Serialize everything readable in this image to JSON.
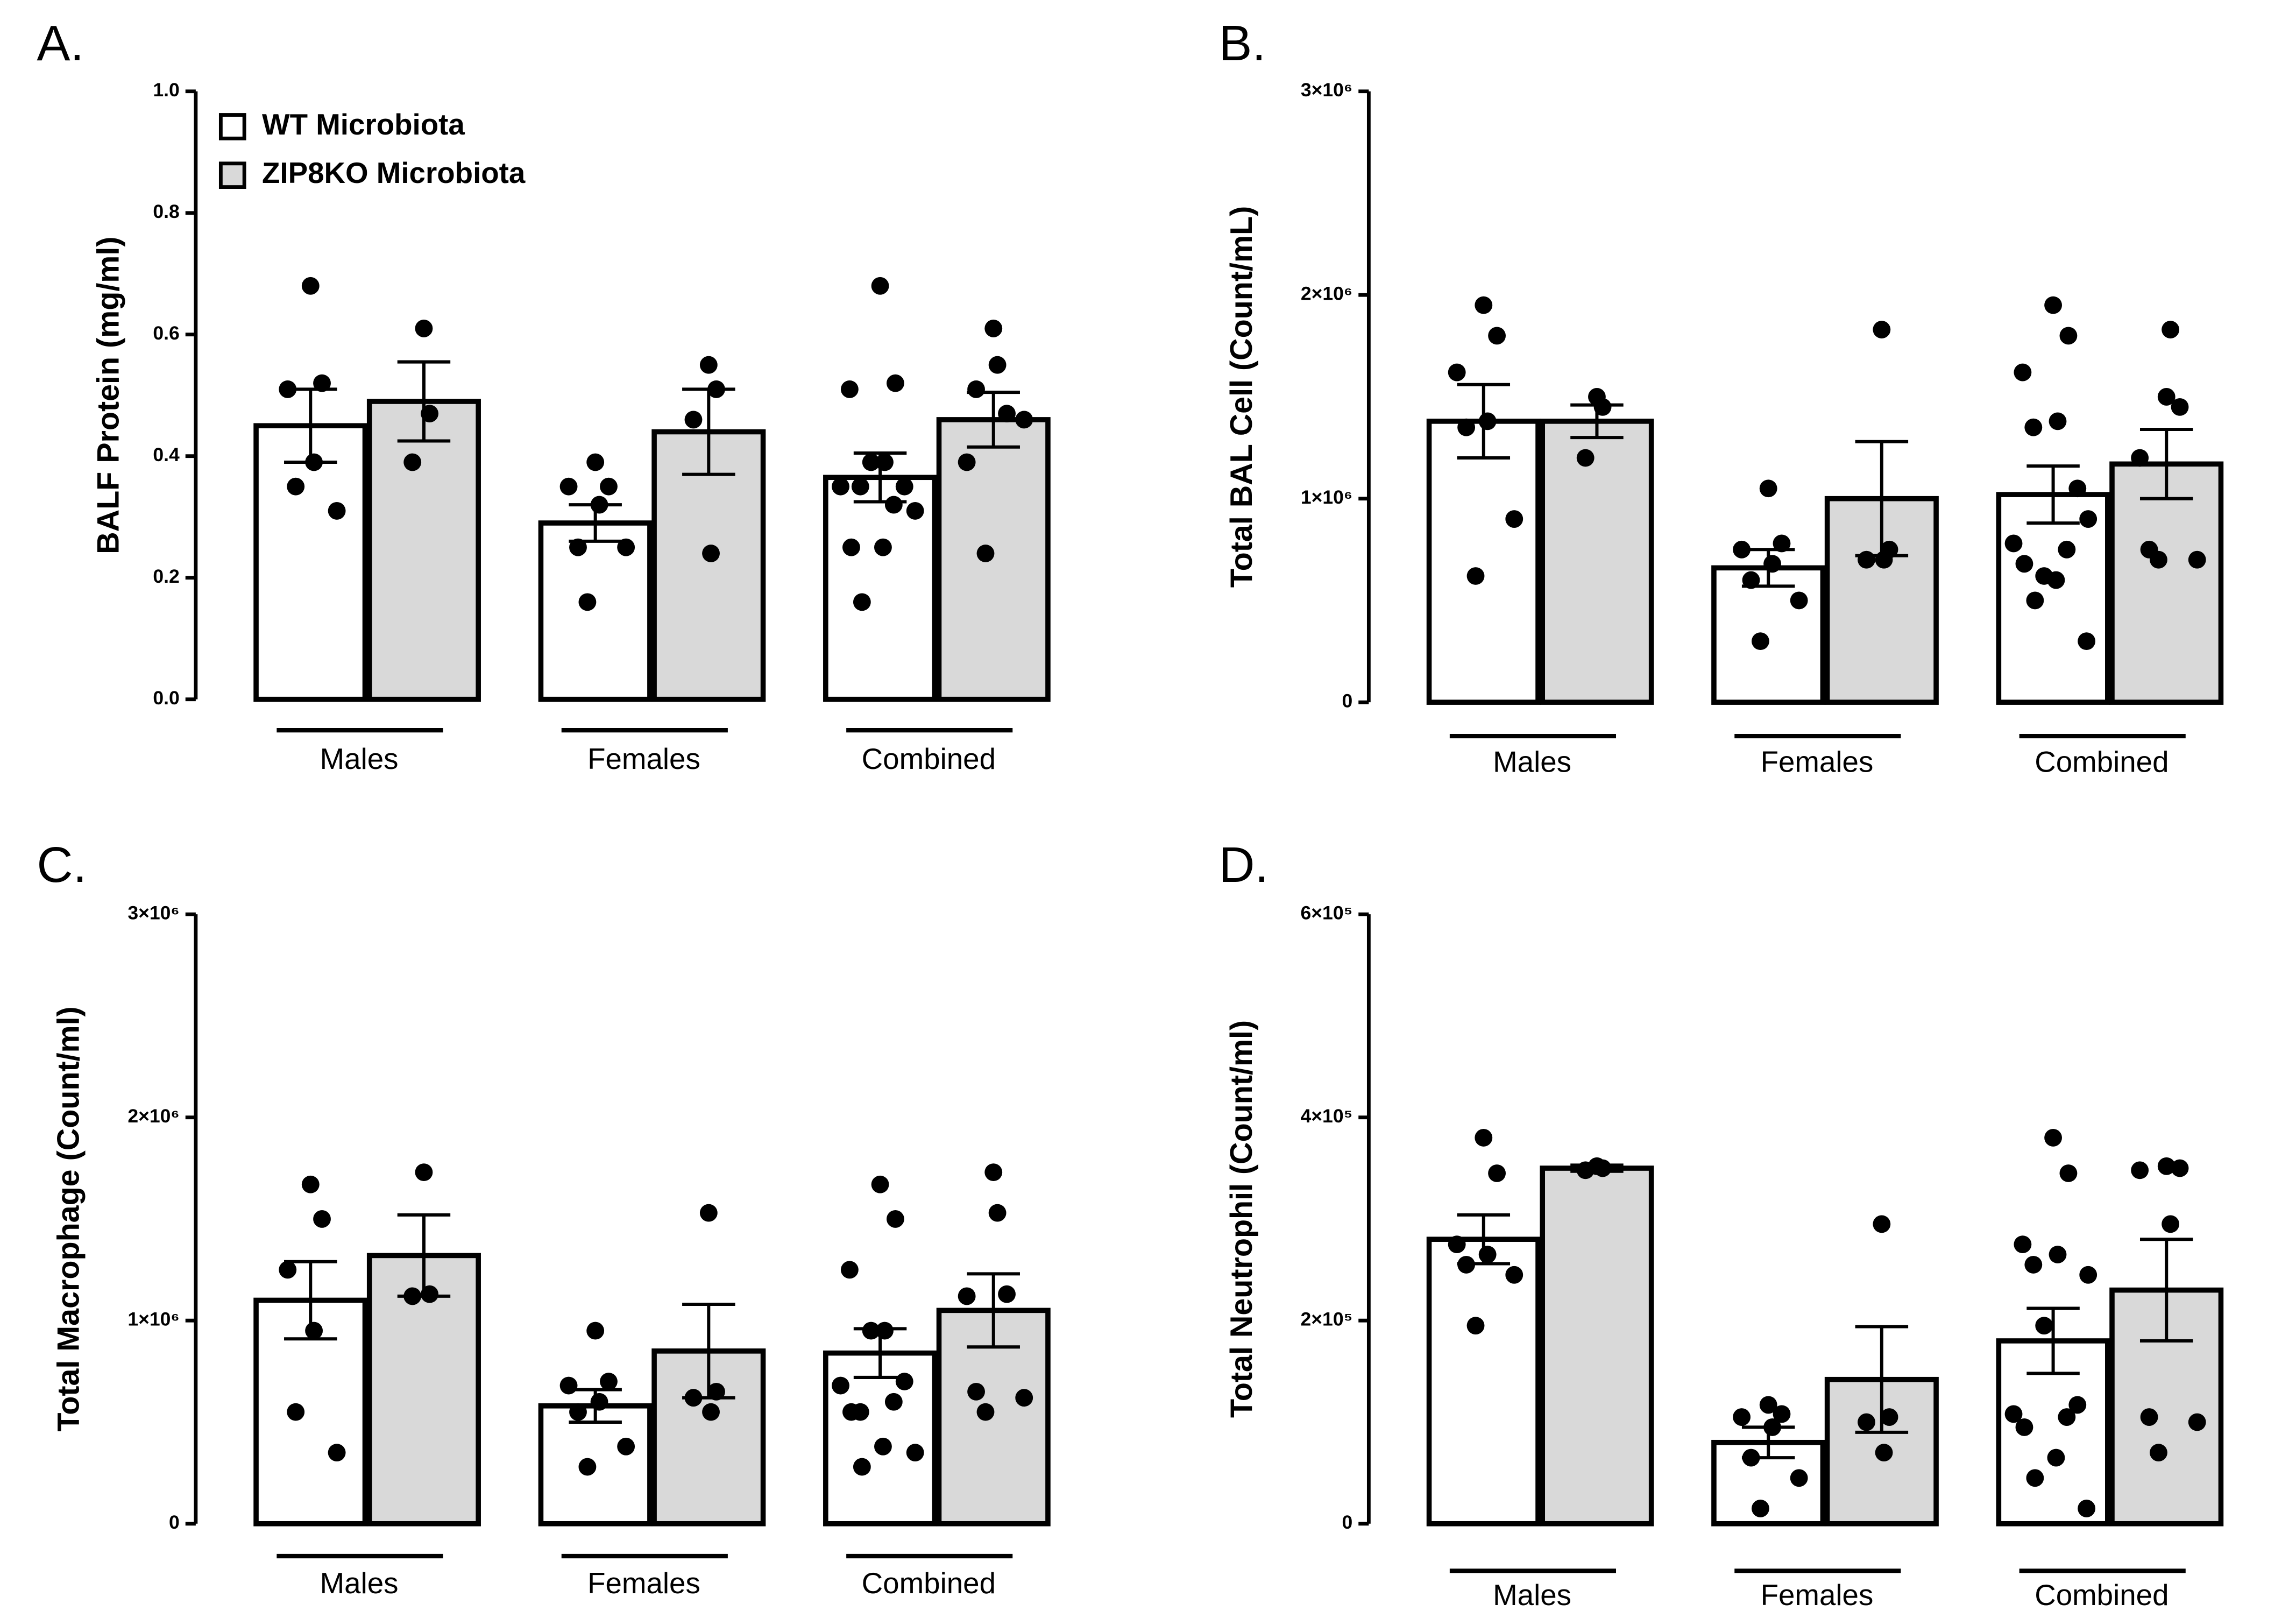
{
  "chart_data": [
    {
      "type": "bar",
      "panel": "A.",
      "ylabel": "BALF Protein  (mg/ml)",
      "legend": "upper left",
      "categories": [
        "Males",
        "Females",
        "Combined"
      ],
      "ylim": [
        0,
        1
      ],
      "yticks": [
        {
          "value": 0,
          "label": "0.0"
        },
        0.2,
        0.4,
        0.6,
        0.8,
        {
          "value": 1,
          "label": "1.0"
        }
      ],
      "series": [
        {
          "name": "WT Microbiota",
          "color": "#ffffff",
          "values": [
            0.45,
            0.29,
            0.365
          ],
          "errors": [
            0.06,
            0.03,
            0.04
          ],
          "points": [
            [
              0.68,
              0.52,
              0.51,
              0.39,
              0.35,
              0.31
            ],
            [
              0.39,
              0.35,
              0.35,
              0.32,
              0.25,
              0.25,
              0.16
            ],
            [
              0.68,
              0.52,
              0.51,
              0.39,
              0.35,
              0.31,
              0.39,
              0.35,
              0.35,
              0.32,
              0.25,
              0.25,
              0.16
            ]
          ]
        },
        {
          "name": "ZIP8KO Microbiota",
          "color": "#d9d9d9",
          "values": [
            0.49,
            0.44,
            0.46
          ],
          "errors": [
            0.065,
            0.07,
            0.045
          ],
          "points": [
            [
              0.61,
              0.47,
              0.39
            ],
            [
              0.55,
              0.51,
              0.46,
              0.24
            ],
            [
              0.61,
              0.47,
              0.39,
              0.55,
              0.51,
              0.46,
              0.24
            ]
          ]
        }
      ]
    },
    {
      "type": "bar",
      "panel": "B.",
      "ylabel": "Total BAL Cell (Count/mL)",
      "categories": [
        "Males",
        "Females",
        "Combined"
      ],
      "ylim": [
        0,
        3000000
      ],
      "yticks": [
        0,
        {
          "value": 1000000,
          "label": "1×10⁶"
        },
        {
          "value": 2000000,
          "label": "2×10⁶"
        },
        {
          "value": 3000000,
          "label": "3×10⁶"
        }
      ],
      "series": [
        {
          "color": "#ffffff",
          "values": [
            1380000,
            660000,
            1020000
          ],
          "errors": [
            180000,
            90000,
            140000
          ],
          "points": [
            [
              1950000,
              1800000,
              1620000,
              1380000,
              1350000,
              900000,
              620000
            ],
            [
              1050000,
              780000,
              750000,
              680000,
              600000,
              500000,
              300000
            ],
            [
              1950000,
              1800000,
              1620000,
              1380000,
              1350000,
              900000,
              620000,
              1050000,
              780000,
              750000,
              680000,
              600000,
              500000,
              300000
            ]
          ]
        },
        {
          "color": "#d9d9d9",
          "values": [
            1380000,
            1000000,
            1170000
          ],
          "errors": [
            80000,
            280000,
            170000
          ],
          "points": [
            [
              1500000,
              1450000,
              1200000
            ],
            [
              1830000,
              750000,
              700000,
              700000
            ],
            [
              1500000,
              1450000,
              1200000,
              1830000,
              750000,
              700000,
              700000
            ]
          ]
        }
      ]
    },
    {
      "type": "bar",
      "panel": "C.",
      "ylabel": "Total Macrophage (Count/ml)",
      "categories": [
        "Males",
        "Females",
        "Combined"
      ],
      "ylim": [
        0,
        3000000
      ],
      "yticks": [
        0,
        {
          "value": 1000000,
          "label": "1×10⁶"
        },
        {
          "value": 2000000,
          "label": "2×10⁶"
        },
        {
          "value": 3000000,
          "label": "3×10⁶"
        }
      ],
      "series": [
        {
          "color": "#ffffff",
          "values": [
            1100000,
            580000,
            840000
          ],
          "errors": [
            190000,
            80000,
            120000
          ],
          "points": [
            [
              1670000,
              1500000,
              1250000,
              950000,
              550000,
              350000
            ],
            [
              950000,
              700000,
              680000,
              600000,
              550000,
              380000,
              280000
            ],
            [
              1670000,
              1500000,
              1250000,
              950000,
              550000,
              350000,
              950000,
              700000,
              680000,
              600000,
              550000,
              380000,
              280000
            ]
          ]
        },
        {
          "color": "#d9d9d9",
          "values": [
            1320000,
            850000,
            1050000
          ],
          "errors": [
            200000,
            230000,
            180000
          ],
          "points": [
            [
              1730000,
              1130000,
              1120000
            ],
            [
              1530000,
              650000,
              620000,
              550000
            ],
            [
              1730000,
              1130000,
              1120000,
              1530000,
              650000,
              620000,
              550000
            ]
          ]
        }
      ]
    },
    {
      "type": "bar",
      "panel": "D.",
      "ylabel": "Total Neutrophil (Count/ml)",
      "categories": [
        "Males",
        "Females",
        "Combined"
      ],
      "ylim": [
        0,
        600000
      ],
      "yticks": [
        0,
        {
          "value": 200000,
          "label": "2×10⁵"
        },
        {
          "value": 400000,
          "label": "4×10⁵"
        },
        {
          "value": 600000,
          "label": "6×10⁵"
        }
      ],
      "series": [
        {
          "color": "#ffffff",
          "values": [
            280000,
            80000,
            180000
          ],
          "errors": [
            24000,
            15000,
            32000
          ],
          "points": [
            [
              380000,
              345000,
              275000,
              265000,
              255000,
              245000,
              195000
            ],
            [
              117000,
              108000,
              105000,
              95000,
              65000,
              45000,
              15000
            ],
            [
              380000,
              345000,
              275000,
              265000,
              255000,
              245000,
              195000,
              117000,
              108000,
              105000,
              95000,
              65000,
              45000,
              15000
            ]
          ]
        },
        {
          "color": "#d9d9d9",
          "values": [
            350000,
            142000,
            230000
          ],
          "errors": [
            3000,
            52000,
            50000
          ],
          "points": [
            [
              352000,
              350000,
              348000
            ],
            [
              295000,
              105000,
              100000,
              70000
            ],
            [
              352000,
              350000,
              348000,
              295000,
              105000,
              100000,
              70000
            ]
          ]
        }
      ]
    }
  ]
}
